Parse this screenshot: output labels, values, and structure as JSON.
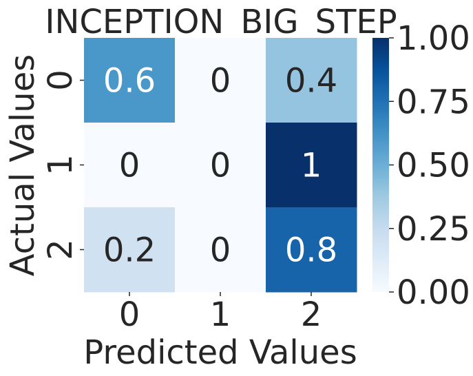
{
  "chart_data": {
    "type": "heatmap",
    "title": "INCEPTION_BIG_STEP",
    "xlabel": "Predicted Values",
    "ylabel": "Actual Values",
    "x_categories": [
      "0",
      "1",
      "2"
    ],
    "y_categories": [
      "0",
      "1",
      "2"
    ],
    "values": [
      [
        0.6,
        0,
        0.4
      ],
      [
        0,
        0,
        1
      ],
      [
        0.2,
        0,
        0.8
      ]
    ],
    "cell_labels": [
      [
        "0.6",
        "0",
        "0.4"
      ],
      [
        "0",
        "0",
        "1"
      ],
      [
        "0.2",
        "0",
        "0.8"
      ]
    ],
    "colormap": "Blues",
    "vmin": 0,
    "vmax": 1,
    "colorbar_ticks": [
      {
        "value": 0,
        "label": "0.00"
      },
      {
        "value": 0.25,
        "label": "0.25"
      },
      {
        "value": 0.5,
        "label": "0.50"
      },
      {
        "value": 0.75,
        "label": "0.75"
      },
      {
        "value": 1,
        "label": "1.00"
      }
    ],
    "colors": {
      "text_dark": "#262626",
      "text_light": "#ffffff",
      "scale": [
        "#f7fbff",
        "#deebf7",
        "#c6dbef",
        "#9ecae1",
        "#6baed6",
        "#4292c6",
        "#2171b5",
        "#08519c",
        "#08306b"
      ]
    }
  }
}
